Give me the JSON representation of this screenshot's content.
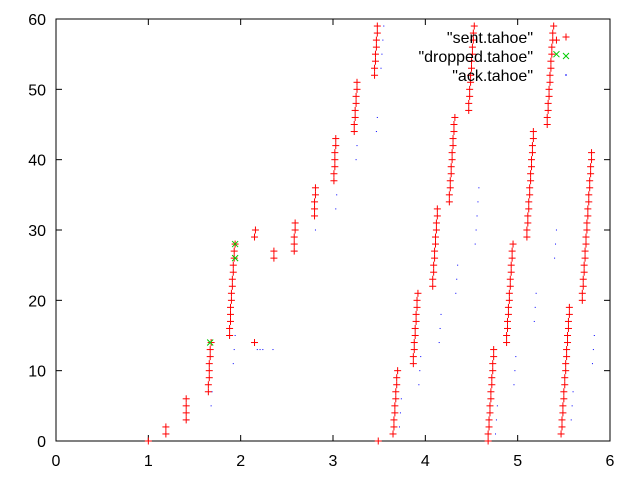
{
  "chart_data": {
    "type": "scatter",
    "title": "",
    "xlabel": "",
    "ylabel": "",
    "xlim": [
      0,
      6
    ],
    "ylim": [
      0,
      60
    ],
    "grid": false,
    "legend_position": "top-right",
    "x_ticks": [
      "0",
      "1",
      "2",
      "3",
      "4",
      "5",
      "6"
    ],
    "y_ticks": [
      "0",
      "10",
      "20",
      "30",
      "40",
      "50",
      "60"
    ],
    "series": [
      {
        "name": "\"sent.tahoe\"",
        "marker": "plus",
        "color": "#ff0000",
        "points": [
          [
            1.0,
            0
          ],
          [
            1.19,
            1
          ],
          [
            1.19,
            2
          ],
          [
            1.41,
            3
          ],
          [
            1.41,
            4
          ],
          [
            1.41,
            5
          ],
          [
            1.41,
            6
          ],
          [
            1.65,
            7
          ],
          [
            1.65,
            8
          ],
          [
            1.66,
            9
          ],
          [
            1.66,
            10
          ],
          [
            1.66,
            11
          ],
          [
            1.67,
            12
          ],
          [
            1.67,
            13
          ],
          [
            1.68,
            14
          ],
          [
            1.88,
            15
          ],
          [
            1.88,
            16
          ],
          [
            1.89,
            17
          ],
          [
            1.89,
            18
          ],
          [
            1.89,
            19
          ],
          [
            1.9,
            20
          ],
          [
            1.9,
            21
          ],
          [
            1.91,
            22
          ],
          [
            1.91,
            23
          ],
          [
            1.92,
            24
          ],
          [
            1.92,
            25
          ],
          [
            1.93,
            26
          ],
          [
            1.93,
            27
          ],
          [
            1.94,
            28
          ],
          [
            2.15,
            14
          ],
          [
            2.15,
            29
          ],
          [
            2.16,
            30
          ],
          [
            2.36,
            26
          ],
          [
            2.36,
            27
          ],
          [
            2.58,
            27
          ],
          [
            2.58,
            28
          ],
          [
            2.58,
            29
          ],
          [
            2.59,
            30
          ],
          [
            2.59,
            31
          ],
          [
            2.8,
            32
          ],
          [
            2.8,
            33
          ],
          [
            2.8,
            34
          ],
          [
            2.81,
            35
          ],
          [
            2.81,
            36
          ],
          [
            3.01,
            37
          ],
          [
            3.01,
            38
          ],
          [
            3.02,
            39
          ],
          [
            3.02,
            40
          ],
          [
            3.02,
            41
          ],
          [
            3.03,
            42
          ],
          [
            3.03,
            43
          ],
          [
            3.23,
            44
          ],
          [
            3.23,
            45
          ],
          [
            3.24,
            46
          ],
          [
            3.24,
            47
          ],
          [
            3.25,
            48
          ],
          [
            3.25,
            49
          ],
          [
            3.26,
            50
          ],
          [
            3.26,
            51
          ],
          [
            3.45,
            52
          ],
          [
            3.45,
            53
          ],
          [
            3.46,
            54
          ],
          [
            3.46,
            55
          ],
          [
            3.47,
            56
          ],
          [
            3.47,
            57
          ],
          [
            3.48,
            58
          ],
          [
            3.48,
            59
          ],
          [
            3.49,
            0
          ],
          [
            3.65,
            1
          ],
          [
            3.66,
            2
          ],
          [
            3.66,
            3
          ],
          [
            3.67,
            4
          ],
          [
            3.67,
            5
          ],
          [
            3.68,
            6
          ],
          [
            3.68,
            7
          ],
          [
            3.69,
            8
          ],
          [
            3.69,
            9
          ],
          [
            3.7,
            10
          ],
          [
            3.87,
            11
          ],
          [
            3.87,
            12
          ],
          [
            3.88,
            13
          ],
          [
            3.88,
            14
          ],
          [
            3.89,
            15
          ],
          [
            3.89,
            16
          ],
          [
            3.9,
            17
          ],
          [
            3.9,
            18
          ],
          [
            3.91,
            19
          ],
          [
            3.91,
            20
          ],
          [
            3.92,
            21
          ],
          [
            4.08,
            22
          ],
          [
            4.08,
            23
          ],
          [
            4.09,
            24
          ],
          [
            4.09,
            25
          ],
          [
            4.1,
            26
          ],
          [
            4.1,
            27
          ],
          [
            4.11,
            28
          ],
          [
            4.11,
            29
          ],
          [
            4.12,
            30
          ],
          [
            4.12,
            31
          ],
          [
            4.13,
            32
          ],
          [
            4.13,
            33
          ],
          [
            4.26,
            34
          ],
          [
            4.26,
            35
          ],
          [
            4.27,
            36
          ],
          [
            4.27,
            37
          ],
          [
            4.28,
            38
          ],
          [
            4.28,
            39
          ],
          [
            4.29,
            40
          ],
          [
            4.29,
            41
          ],
          [
            4.3,
            42
          ],
          [
            4.3,
            43
          ],
          [
            4.31,
            44
          ],
          [
            4.31,
            45
          ],
          [
            4.32,
            46
          ],
          [
            4.47,
            47
          ],
          [
            4.47,
            48
          ],
          [
            4.48,
            49
          ],
          [
            4.48,
            50
          ],
          [
            4.49,
            51
          ],
          [
            4.49,
            52
          ],
          [
            4.5,
            53
          ],
          [
            4.5,
            54
          ],
          [
            4.51,
            55
          ],
          [
            4.51,
            56
          ],
          [
            4.52,
            57
          ],
          [
            4.52,
            58
          ],
          [
            4.53,
            59
          ],
          [
            4.68,
            0
          ],
          [
            4.68,
            1
          ],
          [
            4.69,
            2
          ],
          [
            4.69,
            3
          ],
          [
            4.7,
            4
          ],
          [
            4.7,
            5
          ],
          [
            4.71,
            6
          ],
          [
            4.71,
            7
          ],
          [
            4.72,
            8
          ],
          [
            4.72,
            9
          ],
          [
            4.73,
            10
          ],
          [
            4.73,
            11
          ],
          [
            4.74,
            12
          ],
          [
            4.74,
            13
          ],
          [
            4.88,
            14
          ],
          [
            4.88,
            15
          ],
          [
            4.89,
            16
          ],
          [
            4.89,
            17
          ],
          [
            4.9,
            18
          ],
          [
            4.9,
            19
          ],
          [
            4.91,
            20
          ],
          [
            4.91,
            21
          ],
          [
            4.92,
            22
          ],
          [
            4.92,
            23
          ],
          [
            4.93,
            24
          ],
          [
            4.93,
            25
          ],
          [
            4.94,
            26
          ],
          [
            4.94,
            27
          ],
          [
            4.95,
            28
          ],
          [
            5.1,
            29
          ],
          [
            5.1,
            30
          ],
          [
            5.11,
            31
          ],
          [
            5.11,
            32
          ],
          [
            5.12,
            33
          ],
          [
            5.12,
            34
          ],
          [
            5.13,
            35
          ],
          [
            5.13,
            36
          ],
          [
            5.14,
            37
          ],
          [
            5.14,
            38
          ],
          [
            5.15,
            39
          ],
          [
            5.15,
            40
          ],
          [
            5.16,
            41
          ],
          [
            5.16,
            42
          ],
          [
            5.17,
            43
          ],
          [
            5.17,
            44
          ],
          [
            5.32,
            45
          ],
          [
            5.32,
            46
          ],
          [
            5.33,
            47
          ],
          [
            5.33,
            48
          ],
          [
            5.34,
            49
          ],
          [
            5.34,
            50
          ],
          [
            5.35,
            51
          ],
          [
            5.35,
            52
          ],
          [
            5.36,
            53
          ],
          [
            5.36,
            54
          ],
          [
            5.37,
            55
          ],
          [
            5.37,
            56
          ],
          [
            5.38,
            57
          ],
          [
            5.38,
            58
          ],
          [
            5.39,
            59
          ],
          [
            5.42,
            57
          ],
          [
            5.47,
            1
          ],
          [
            5.48,
            2
          ],
          [
            5.48,
            3
          ],
          [
            5.49,
            4
          ],
          [
            5.49,
            5
          ],
          [
            5.5,
            6
          ],
          [
            5.5,
            7
          ],
          [
            5.51,
            8
          ],
          [
            5.51,
            9
          ],
          [
            5.52,
            10
          ],
          [
            5.52,
            11
          ],
          [
            5.53,
            12
          ],
          [
            5.53,
            13
          ],
          [
            5.54,
            14
          ],
          [
            5.54,
            15
          ],
          [
            5.55,
            16
          ],
          [
            5.55,
            17
          ],
          [
            5.56,
            18
          ],
          [
            5.56,
            19
          ],
          [
            5.7,
            20
          ],
          [
            5.7,
            21
          ],
          [
            5.71,
            22
          ],
          [
            5.71,
            23
          ],
          [
            5.72,
            24
          ],
          [
            5.72,
            25
          ],
          [
            5.73,
            26
          ],
          [
            5.73,
            27
          ],
          [
            5.74,
            28
          ],
          [
            5.74,
            29
          ],
          [
            5.75,
            30
          ],
          [
            5.75,
            31
          ],
          [
            5.76,
            32
          ],
          [
            5.76,
            33
          ],
          [
            5.77,
            34
          ],
          [
            5.77,
            35
          ],
          [
            5.78,
            36
          ],
          [
            5.78,
            37
          ],
          [
            5.79,
            38
          ],
          [
            5.79,
            39
          ],
          [
            5.8,
            40
          ],
          [
            5.8,
            41
          ]
        ]
      },
      {
        "name": "\"dropped.tahoe\"",
        "marker": "cross",
        "color": "#00cc00",
        "points": [
          [
            1.67,
            14
          ],
          [
            1.94,
            26
          ],
          [
            1.94,
            28
          ],
          [
            5.42,
            55
          ]
        ]
      },
      {
        "name": "\"ack.tahoe\"",
        "marker": "dot",
        "color": "#0000ff",
        "points": [
          [
            1.22,
            1
          ],
          [
            1.43,
            3
          ],
          [
            1.68,
            5
          ],
          [
            1.69,
            7
          ],
          [
            1.92,
            11
          ],
          [
            1.93,
            13
          ],
          [
            1.94,
            15
          ],
          [
            2.18,
            13
          ],
          [
            2.21,
            13
          ],
          [
            2.24,
            13
          ],
          [
            2.35,
            13
          ],
          [
            2.6,
            27
          ],
          [
            2.81,
            30
          ],
          [
            3.03,
            33
          ],
          [
            3.04,
            35
          ],
          [
            3.25,
            40
          ],
          [
            3.26,
            42
          ],
          [
            3.47,
            44
          ],
          [
            3.48,
            46
          ],
          [
            3.52,
            53
          ],
          [
            3.53,
            55
          ],
          [
            3.54,
            57
          ],
          [
            3.55,
            59
          ],
          [
            3.72,
            2
          ],
          [
            3.73,
            4
          ],
          [
            3.74,
            6
          ],
          [
            3.93,
            8
          ],
          [
            3.94,
            10
          ],
          [
            3.95,
            12
          ],
          [
            4.15,
            14
          ],
          [
            4.16,
            16
          ],
          [
            4.17,
            18
          ],
          [
            4.33,
            21
          ],
          [
            4.34,
            23
          ],
          [
            4.35,
            25
          ],
          [
            4.54,
            28
          ],
          [
            4.55,
            30
          ],
          [
            4.56,
            32
          ],
          [
            4.57,
            34
          ],
          [
            4.58,
            36
          ],
          [
            4.76,
            1
          ],
          [
            4.77,
            3
          ],
          [
            4.78,
            5
          ],
          [
            4.96,
            8
          ],
          [
            4.97,
            10
          ],
          [
            4.98,
            12
          ],
          [
            5.18,
            17
          ],
          [
            5.19,
            19
          ],
          [
            5.2,
            21
          ],
          [
            5.4,
            26
          ],
          [
            5.41,
            28
          ],
          [
            5.42,
            30
          ],
          [
            5.58,
            3
          ],
          [
            5.59,
            5
          ],
          [
            5.6,
            7
          ],
          [
            5.81,
            11
          ],
          [
            5.82,
            13
          ],
          [
            5.83,
            15
          ]
        ]
      }
    ]
  }
}
